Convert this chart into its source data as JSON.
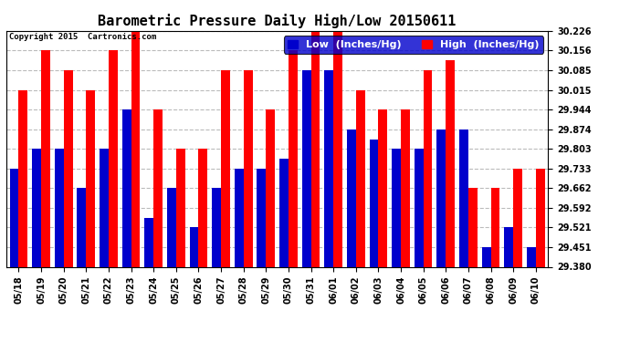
{
  "title": "Barometric Pressure Daily High/Low 20150611",
  "copyright": "Copyright 2015  Cartronics.com",
  "legend_low_label": "Low  (Inches/Hg)",
  "legend_high_label": "High  (Inches/Hg)",
  "dates": [
    "05/18",
    "05/19",
    "05/20",
    "05/21",
    "05/22",
    "05/23",
    "05/24",
    "05/25",
    "05/26",
    "05/27",
    "05/28",
    "05/29",
    "05/30",
    "05/31",
    "06/01",
    "06/02",
    "06/03",
    "06/04",
    "06/05",
    "06/06",
    "06/07",
    "06/08",
    "06/09",
    "06/10"
  ],
  "low": [
    29.733,
    29.803,
    29.803,
    29.662,
    29.803,
    29.944,
    29.556,
    29.662,
    29.521,
    29.662,
    29.733,
    29.733,
    29.768,
    30.085,
    30.085,
    29.874,
    29.838,
    29.803,
    29.803,
    29.874,
    29.874,
    29.451,
    29.521,
    29.451
  ],
  "high": [
    30.015,
    30.156,
    30.085,
    30.015,
    30.156,
    30.226,
    29.944,
    29.803,
    29.803,
    30.085,
    30.085,
    29.944,
    30.156,
    30.226,
    30.226,
    30.015,
    29.944,
    29.944,
    30.085,
    30.12,
    29.662,
    29.662,
    29.733,
    29.733
  ],
  "ymin": 29.38,
  "ymax": 30.226,
  "yticks": [
    29.38,
    29.451,
    29.521,
    29.592,
    29.662,
    29.733,
    29.803,
    29.874,
    29.944,
    30.015,
    30.085,
    30.156,
    30.226
  ],
  "bar_width": 0.4,
  "low_color": "#0000cc",
  "high_color": "#ff0000",
  "bg_color": "#ffffff",
  "grid_color": "#bbbbbb",
  "title_fontsize": 11,
  "tick_fontsize": 7,
  "legend_fontsize": 8
}
